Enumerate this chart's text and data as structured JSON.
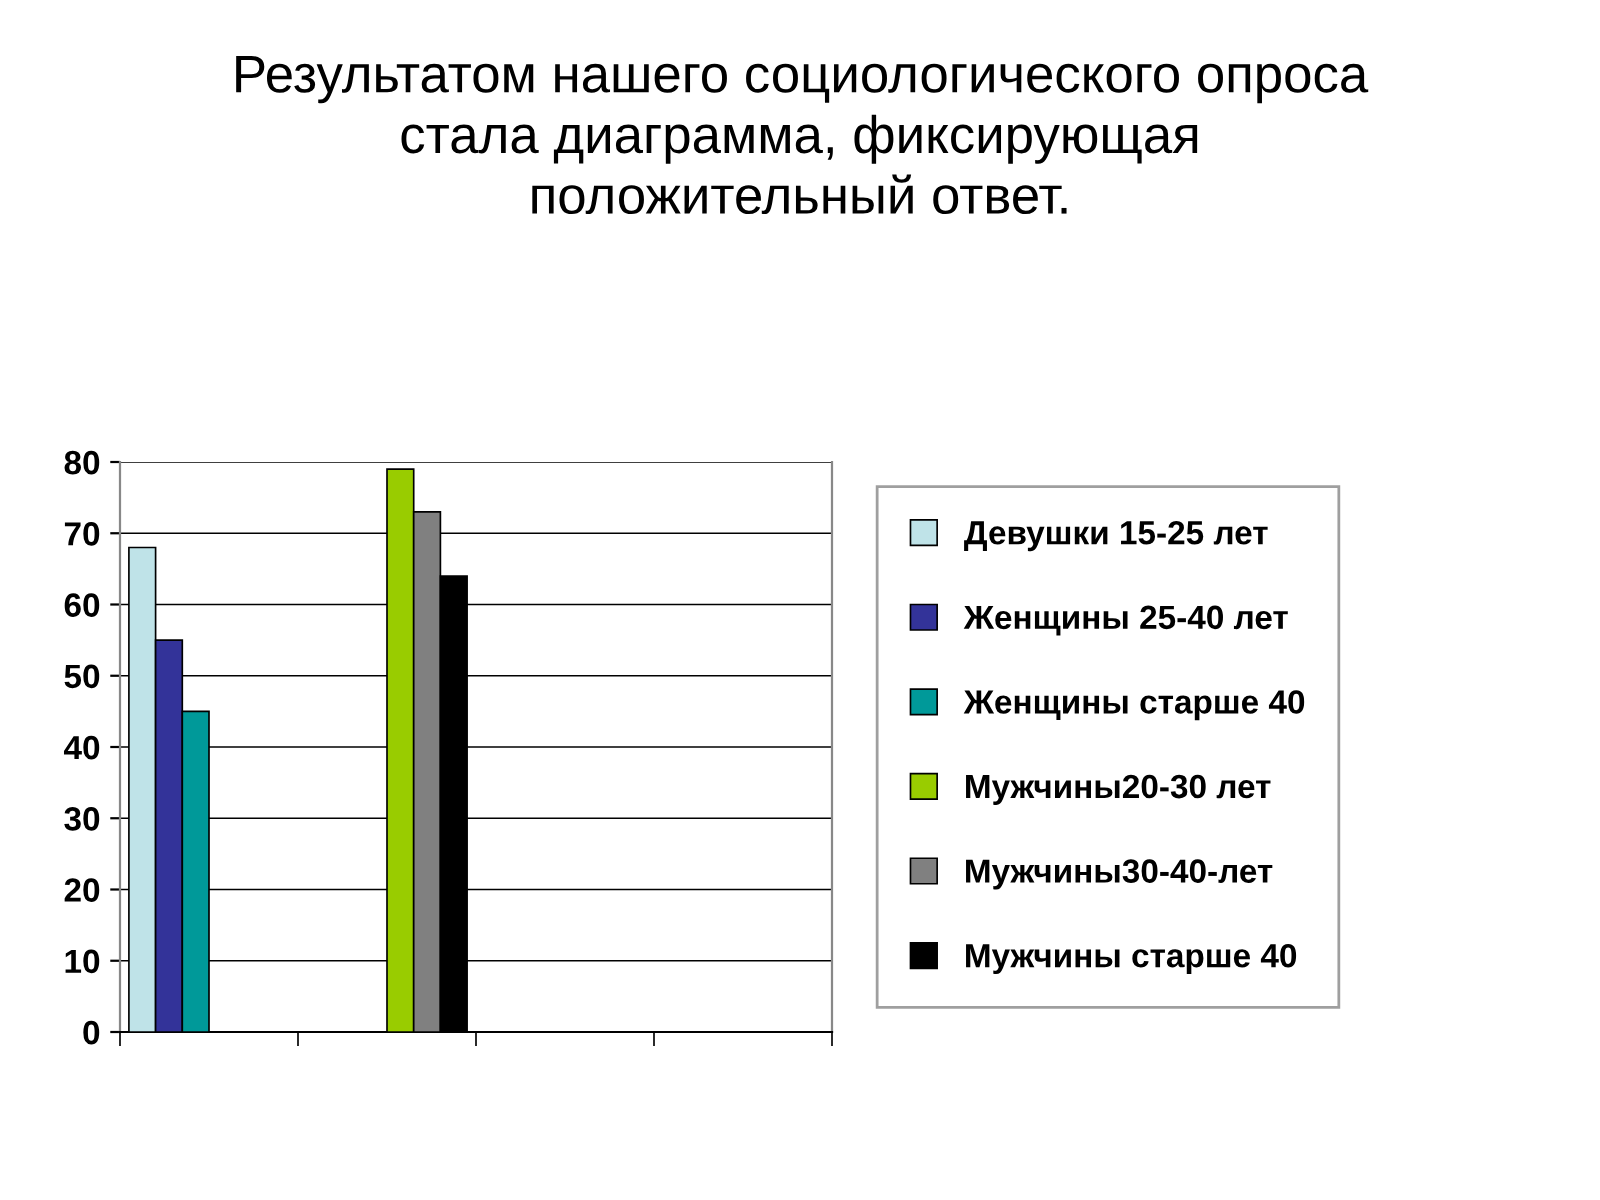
{
  "chart_data": {
    "type": "bar",
    "title": "Результатом нашего социологического опроса\nстала диаграмма, фиксирующая\nположительный ответ.",
    "categories": [
      null,
      null,
      null,
      null
    ],
    "series": [
      {
        "name": "Девушки 15-25 лет",
        "color": "#bfe3e8",
        "values": [
          68,
          null,
          null,
          null
        ]
      },
      {
        "name": "Женщины 25-40 лет",
        "color": "#333399",
        "values": [
          55,
          null,
          null,
          null
        ]
      },
      {
        "name": "Женщины старше 40",
        "color": "#009999",
        "values": [
          45,
          null,
          null,
          null
        ]
      },
      {
        "name": "Мужчины20-30 лет",
        "color": "#99cc00",
        "values": [
          null,
          79,
          null,
          null
        ]
      },
      {
        "name": "Мужчины30-40-лет",
        "color": "#808080",
        "values": [
          null,
          73,
          null,
          null
        ]
      },
      {
        "name": "Мужчины старше 40",
        "color": "#000000",
        "values": [
          null,
          64,
          null,
          null
        ]
      }
    ],
    "ylim": [
      0,
      80
    ],
    "yticks": [
      0,
      10,
      20,
      30,
      40,
      50,
      60,
      70,
      80
    ],
    "grid": "y",
    "legend": "right",
    "tick_labels": "y"
  }
}
